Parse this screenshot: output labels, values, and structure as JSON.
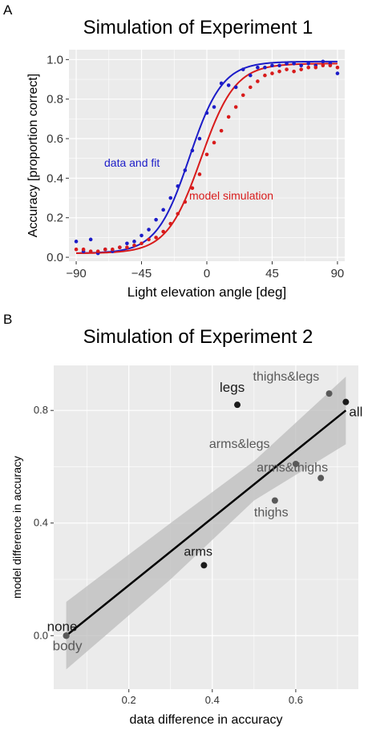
{
  "panels": {
    "a": {
      "letter": "A"
    },
    "b": {
      "letter": "B"
    }
  },
  "colors": {
    "panel_bg": "#ebebeb",
    "grid": "#ffffff",
    "data_blue": "#1c1cc8",
    "model_red": "#d81b1b",
    "point_dark": "#1a1a1a",
    "point_gray": "#595959",
    "ribbon": "#bcbcbc",
    "fit_line": "#000000"
  },
  "chart_data": [
    {
      "type": "scatter",
      "title": "Simulation of Experiment 1",
      "xlabel": "Light elevation angle [deg]",
      "ylabel": "Accuracy [proportion correct]",
      "xlim": [
        -95,
        95
      ],
      "ylim": [
        -0.02,
        1.05
      ],
      "xticks": [
        -90,
        -45,
        0,
        45,
        90
      ],
      "xtick_labels": [
        "−90",
        "−45",
        "0",
        "45",
        "90"
      ],
      "yticks": [
        0.0,
        0.2,
        0.4,
        0.6,
        0.8,
        1.0
      ],
      "ytick_labels": [
        "0.0",
        "0.2",
        "0.4",
        "0.6",
        "0.8",
        "1.0"
      ],
      "grid": true,
      "annotations": [
        {
          "text": "data and fit",
          "color": "#1c1cc8"
        },
        {
          "text": "model simulation",
          "color": "#d81b1b"
        }
      ],
      "series": [
        {
          "kind": "points",
          "color": "#1c1cc8",
          "x": [
            -90,
            -85,
            -80,
            -75,
            -70,
            -65,
            -60,
            -55,
            -50,
            -45,
            -40,
            -35,
            -30,
            -25,
            -20,
            -15,
            -10,
            -5,
            0,
            5,
            10,
            15,
            20,
            25,
            30,
            35,
            40,
            45,
            50,
            55,
            60,
            65,
            70,
            75,
            80,
            85,
            90
          ],
          "y": [
            0.08,
            0.03,
            0.09,
            0.02,
            0.04,
            0.03,
            0.05,
            0.07,
            0.08,
            0.11,
            0.14,
            0.19,
            0.24,
            0.3,
            0.36,
            0.44,
            0.54,
            0.6,
            0.73,
            0.76,
            0.88,
            0.87,
            0.86,
            0.95,
            0.92,
            0.96,
            0.96,
            0.97,
            0.97,
            0.98,
            0.98,
            0.97,
            0.98,
            0.97,
            0.99,
            0.98,
            0.93
          ]
        },
        {
          "kind": "points",
          "color": "#d81b1b",
          "x": [
            -90,
            -85,
            -80,
            -75,
            -70,
            -65,
            -60,
            -55,
            -50,
            -45,
            -40,
            -35,
            -30,
            -25,
            -20,
            -15,
            -10,
            -5,
            0,
            5,
            10,
            15,
            20,
            25,
            30,
            35,
            40,
            45,
            50,
            55,
            60,
            65,
            70,
            75,
            80,
            85,
            90
          ],
          "y": [
            0.04,
            0.04,
            0.03,
            0.03,
            0.04,
            0.04,
            0.05,
            0.05,
            0.06,
            0.07,
            0.09,
            0.1,
            0.13,
            0.17,
            0.22,
            0.28,
            0.35,
            0.42,
            0.52,
            0.58,
            0.64,
            0.71,
            0.76,
            0.82,
            0.86,
            0.89,
            0.92,
            0.93,
            0.94,
            0.95,
            0.94,
            0.95,
            0.96,
            0.96,
            0.97,
            0.97,
            0.96
          ]
        },
        {
          "kind": "logistic-curve",
          "color": "#1c1cc8",
          "lapse_low": 0.02,
          "lapse_high": 0.99,
          "midpoint": -12,
          "slope": 0.088
        },
        {
          "kind": "logistic-curve",
          "color": "#d81b1b",
          "lapse_low": 0.02,
          "lapse_high": 0.98,
          "midpoint": -4,
          "slope": 0.085
        }
      ]
    },
    {
      "type": "scatter",
      "title": "Simulation of Experiment 2",
      "xlabel": "data difference in accuracy",
      "ylabel": "model difference in accuracy",
      "xlim": [
        0.02,
        0.75
      ],
      "ylim": [
        -0.19,
        0.96
      ],
      "xticks": [
        0.2,
        0.4,
        0.6
      ],
      "xtick_labels": [
        "0.2",
        "0.4",
        "0.6"
      ],
      "yticks": [
        0.0,
        0.4,
        0.8
      ],
      "ytick_labels": [
        "0.0",
        "0.4",
        "0.8"
      ],
      "grid": true,
      "fit_line": {
        "x": [
          0.05,
          0.72
        ],
        "y": [
          0.0,
          0.8
        ]
      },
      "ribbon": {
        "x": [
          0.05,
          0.3,
          0.5,
          0.72
        ],
        "upper": [
          0.12,
          0.4,
          0.62,
          0.92
        ],
        "lower": [
          -0.12,
          0.2,
          0.48,
          0.68
        ]
      },
      "points": [
        {
          "label": "none",
          "x": 0.05,
          "y": 0.0,
          "shade": "dark"
        },
        {
          "label": "body",
          "x": 0.05,
          "y": 0.0,
          "shade": "gray"
        },
        {
          "label": "arms",
          "x": 0.38,
          "y": 0.25,
          "shade": "dark"
        },
        {
          "label": "legs",
          "x": 0.46,
          "y": 0.82,
          "shade": "dark"
        },
        {
          "label": "thighs",
          "x": 0.55,
          "y": 0.48,
          "shade": "gray"
        },
        {
          "label": "arms&legs",
          "x": 0.6,
          "y": 0.61,
          "shade": "gray"
        },
        {
          "label": "arms&thighs",
          "x": 0.66,
          "y": 0.56,
          "shade": "gray"
        },
        {
          "label": "thighs&legs",
          "x": 0.68,
          "y": 0.86,
          "shade": "gray"
        },
        {
          "label": "all",
          "x": 0.72,
          "y": 0.83,
          "shade": "dark"
        }
      ]
    }
  ]
}
